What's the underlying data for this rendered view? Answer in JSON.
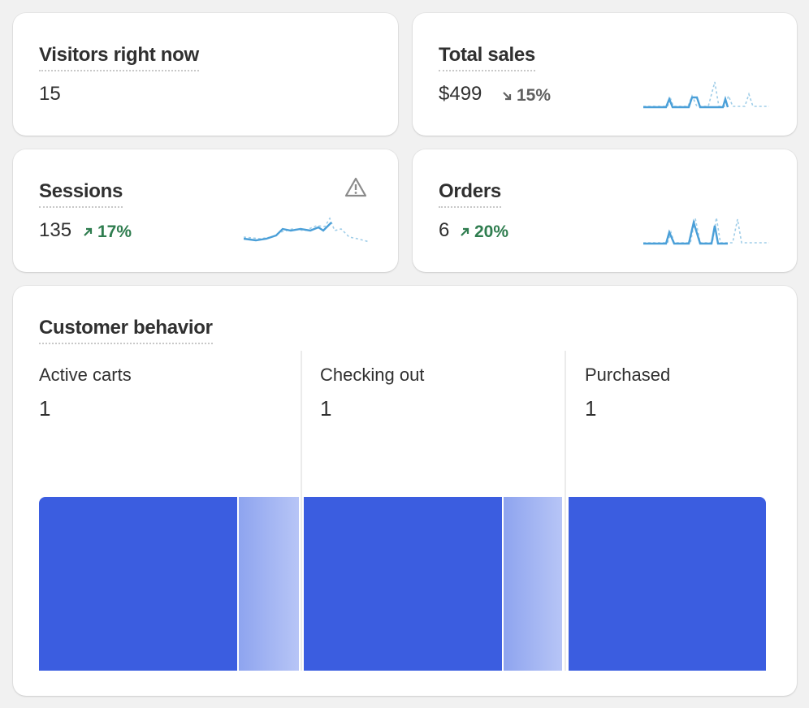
{
  "cards": [
    {
      "title": "Visitors right now",
      "value": "15"
    },
    {
      "title": "Total sales",
      "value": "$499",
      "change": "15%"
    },
    {
      "title": "Sessions",
      "value": "135",
      "change": "17%"
    },
    {
      "title": "Orders",
      "value": "6",
      "change": "20%"
    }
  ],
  "customer_behavior": {
    "title": "Customer behavior",
    "stages": [
      {
        "label": "Active carts",
        "value": 1
      },
      {
        "label": "Checking out",
        "value": 1
      },
      {
        "label": "Purchased",
        "value": 1
      }
    ]
  }
}
